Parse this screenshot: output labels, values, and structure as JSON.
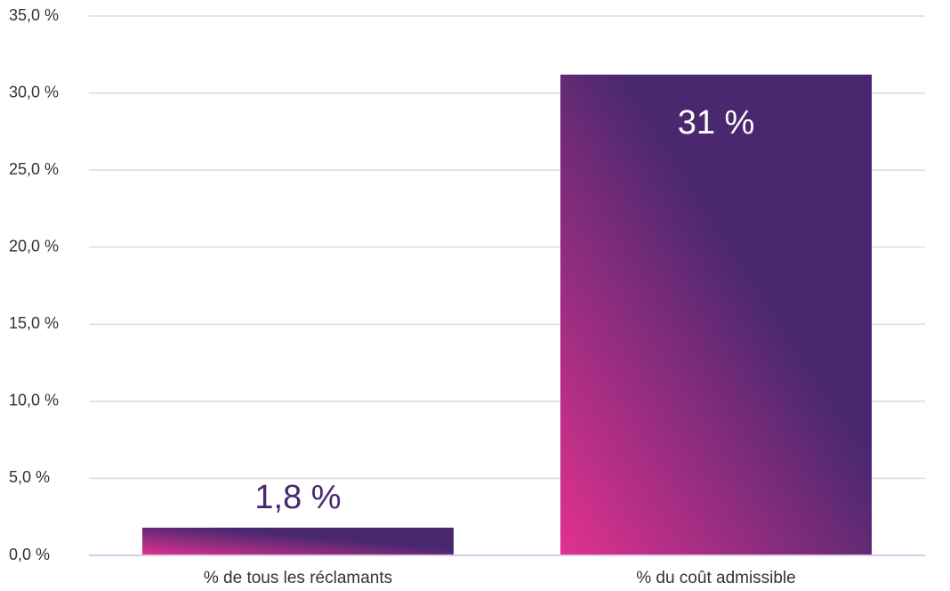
{
  "chart_data": {
    "type": "bar",
    "categories": [
      "% de tous les réclamants",
      "% du coût admissible"
    ],
    "values": [
      1.8,
      31.2
    ],
    "value_labels": [
      "1,8 %",
      "31 %"
    ],
    "gradient": [
      "#e2318f",
      "#4a2870"
    ],
    "ylim": [
      0,
      35
    ],
    "yticks": [
      {
        "value": 0,
        "label": "0,0 %"
      },
      {
        "value": 5,
        "label": "5,0 %"
      },
      {
        "value": 10,
        "label": "10,0 %"
      },
      {
        "value": 15,
        "label": "15,0 %"
      },
      {
        "value": 20,
        "label": "20,0 %"
      },
      {
        "value": 25,
        "label": "25,0 %"
      },
      {
        "value": 30,
        "label": "30,0 %"
      },
      {
        "value": 35,
        "label": "35,0 %"
      }
    ],
    "grid": true
  }
}
